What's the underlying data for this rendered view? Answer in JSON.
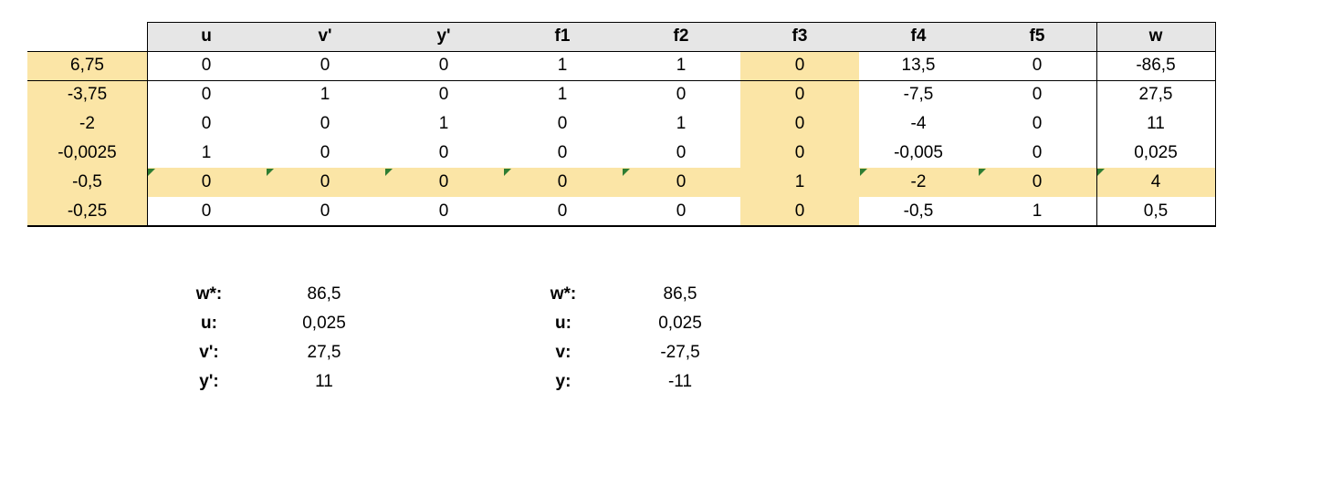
{
  "table": {
    "columns": [
      "u",
      "v'",
      "y'",
      "f1",
      "f2",
      "f3",
      "f4",
      "f5",
      "w"
    ],
    "rows": [
      {
        "label": "6,75",
        "cells": [
          "0",
          "0",
          "0",
          "1",
          "1",
          "0",
          "13,5",
          "0",
          "-86,5"
        ]
      },
      {
        "label": "-3,75",
        "cells": [
          "0",
          "1",
          "0",
          "1",
          "0",
          "0",
          "-7,5",
          "0",
          "27,5"
        ]
      },
      {
        "label": "-2",
        "cells": [
          "0",
          "0",
          "1",
          "0",
          "1",
          "0",
          "-4",
          "0",
          "11"
        ]
      },
      {
        "label": "-0,0025",
        "cells": [
          "1",
          "0",
          "0",
          "0",
          "0",
          "0",
          "-0,005",
          "0",
          "0,025"
        ]
      },
      {
        "label": "-0,5",
        "cells": [
          "0",
          "0",
          "0",
          "0",
          "0",
          "1",
          "-2",
          "0",
          "4"
        ]
      },
      {
        "label": "-0,25",
        "cells": [
          "0",
          "0",
          "0",
          "0",
          "0",
          "0",
          "-0,5",
          "1",
          "0,5"
        ]
      }
    ],
    "highlight_row": 4,
    "highlight_col": 5,
    "highlight_color": "#fbe5a6",
    "header_color": "#e6e6e6",
    "flag_color": "#2e7d32"
  },
  "summary_left": [
    {
      "label": "w*:",
      "value": "86,5"
    },
    {
      "label": "u:",
      "value": "0,025"
    },
    {
      "label": "v':",
      "value": "27,5"
    },
    {
      "label": "y':",
      "value": "11"
    }
  ],
  "summary_right": [
    {
      "label": "w*:",
      "value": "86,5"
    },
    {
      "label": "u:",
      "value": "0,025"
    },
    {
      "label": "v:",
      "value": "-27,5"
    },
    {
      "label": "y:",
      "value": "-11"
    }
  ]
}
